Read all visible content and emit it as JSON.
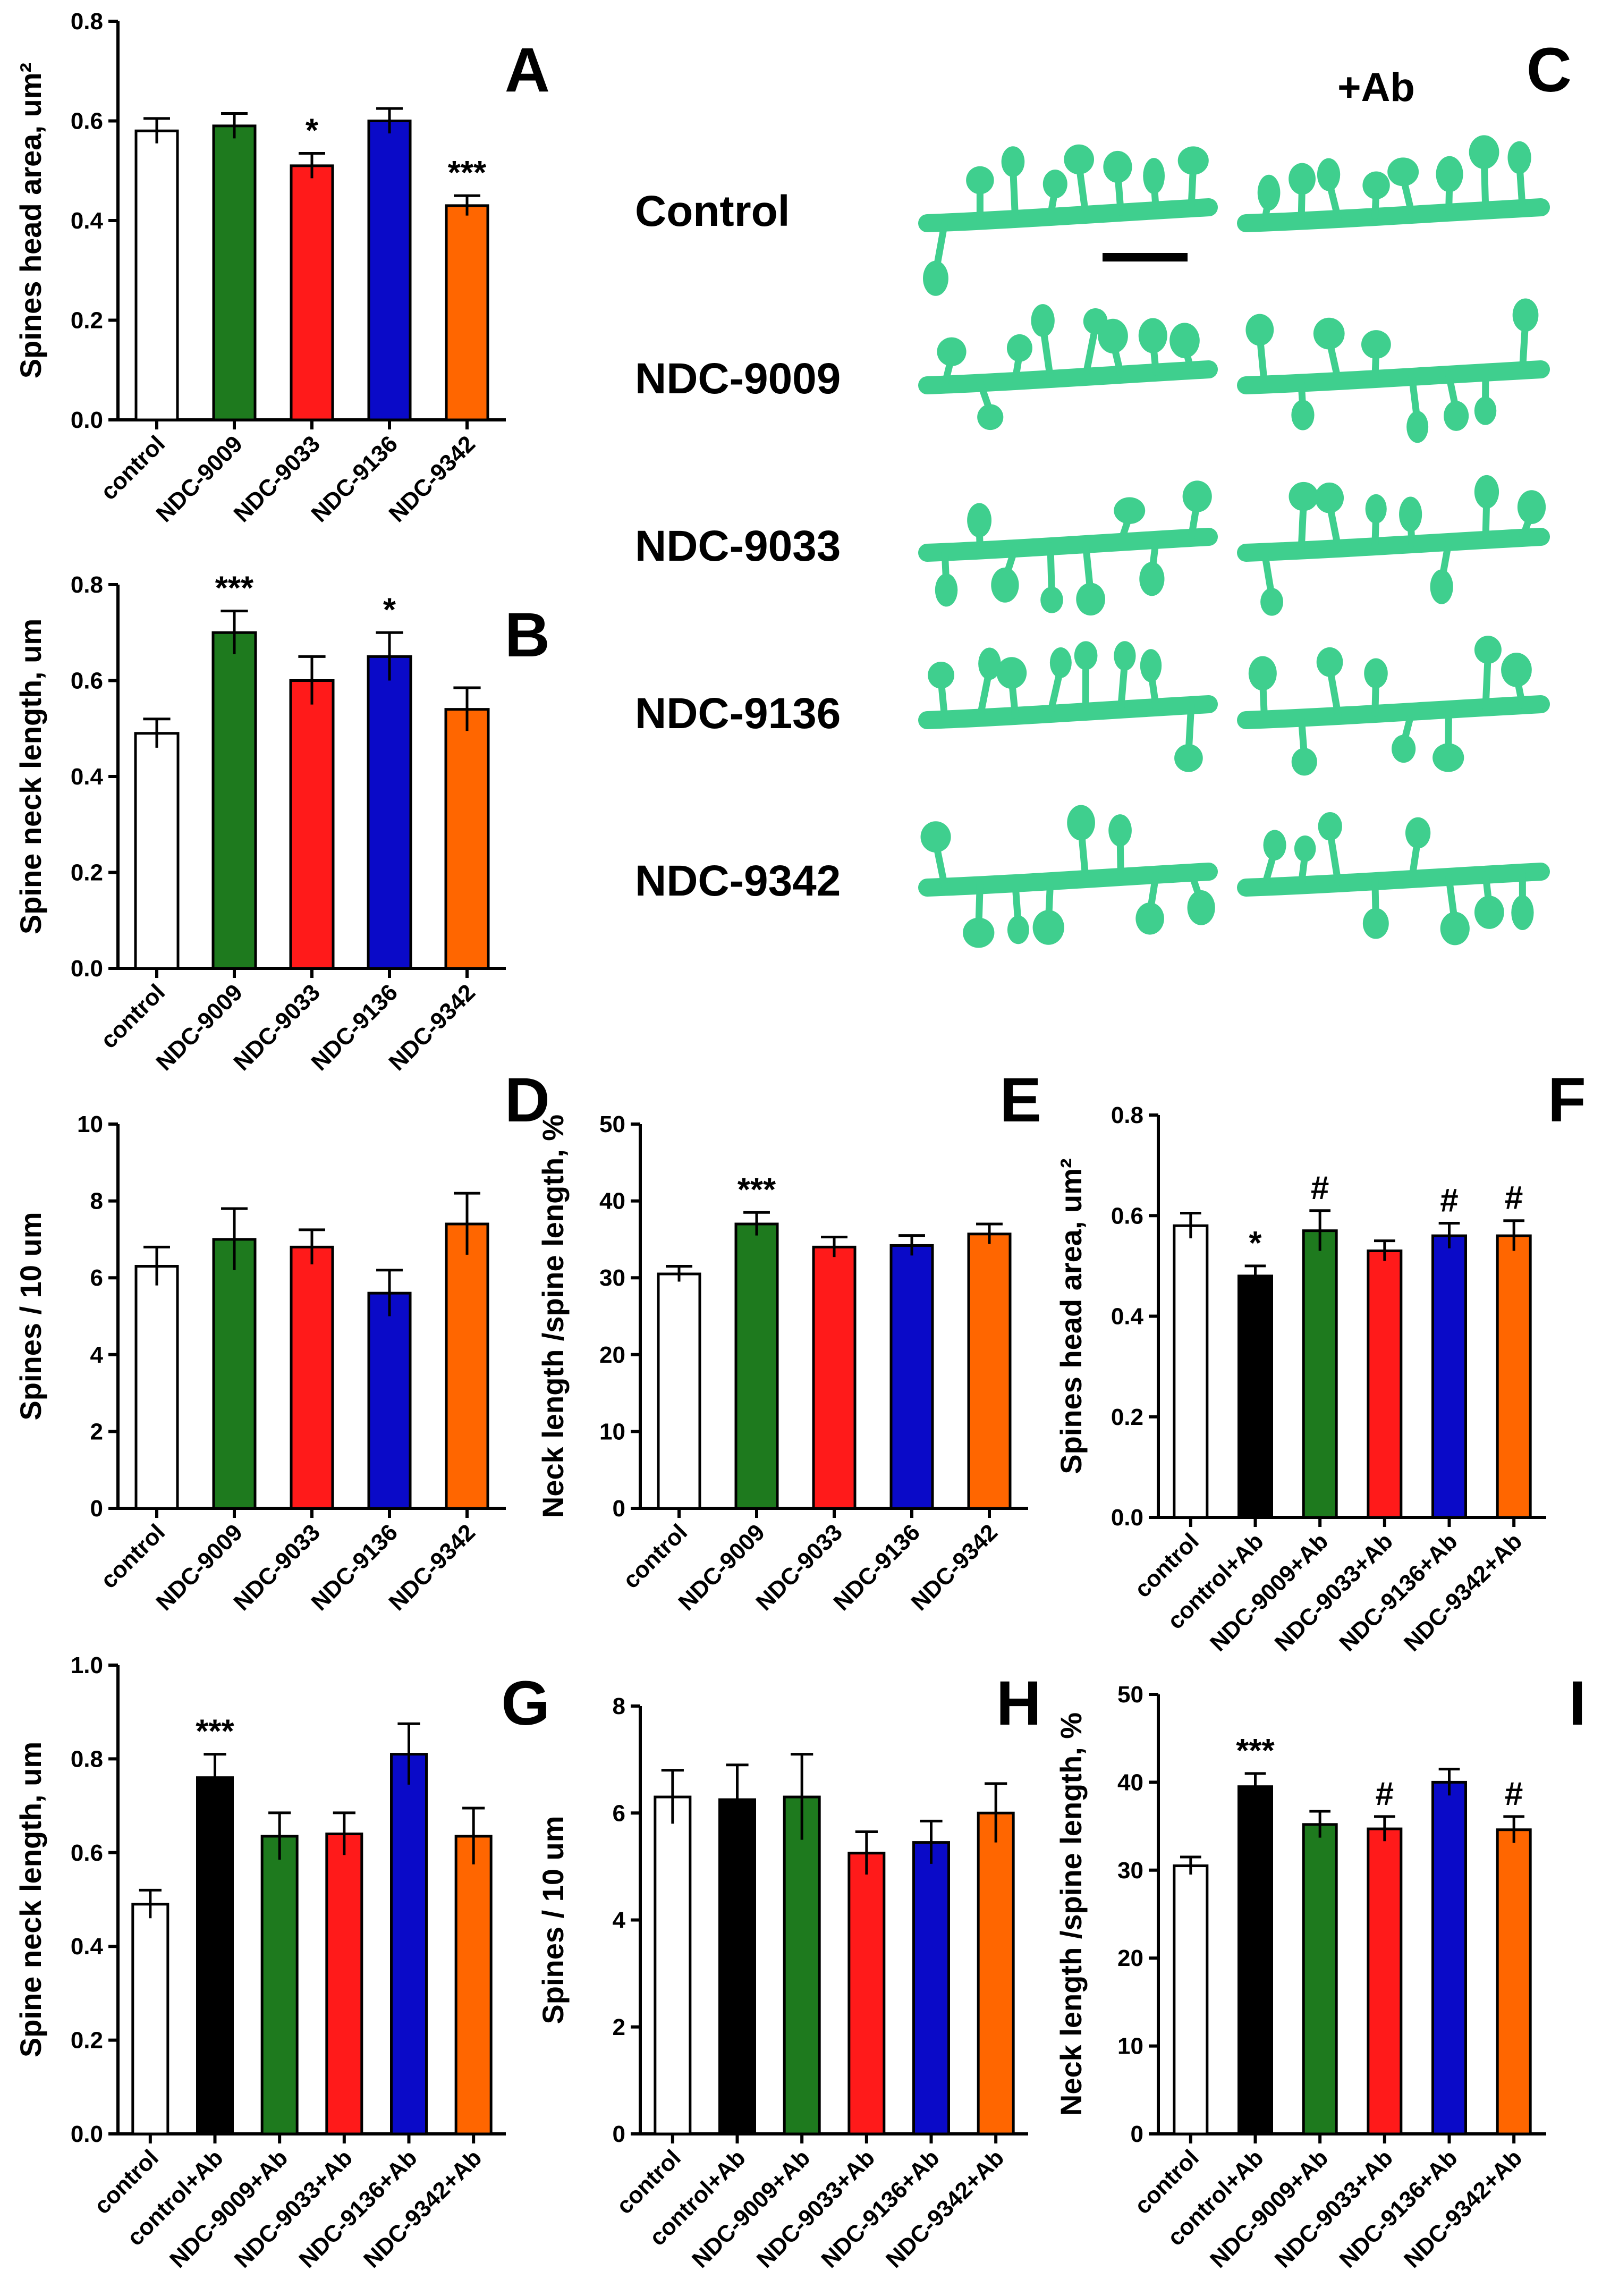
{
  "colors": {
    "control": "#ffffff",
    "control_ab": "#000000",
    "ndc9009": "#1e7a1e",
    "ndc9033": "#ff1a1a",
    "ndc9136": "#0a0ac8",
    "ndc9342": "#ff6600",
    "dendrite": "#3fcf8e",
    "scale_bar": "#000000"
  },
  "micrographs": {
    "panel_letter": "C",
    "column_label": "+Ab",
    "rows": [
      "Control",
      "NDC-9009",
      "NDC-9033",
      "NDC-9136",
      "NDC-9342"
    ]
  },
  "chart_data": [
    {
      "id": "A",
      "type": "bar",
      "panel_letter": "A",
      "ylabel": "Spines head area, um²",
      "ylim": [
        0,
        0.8
      ],
      "yticks": [
        "0.0",
        "0.2",
        "0.4",
        "0.6",
        "0.8"
      ],
      "categories": [
        "control",
        "NDC-9009",
        "NDC-9033",
        "NDC-9136",
        "NDC-9342"
      ],
      "values": [
        0.58,
        0.59,
        0.51,
        0.6,
        0.43
      ],
      "errors": [
        0.025,
        0.025,
        0.025,
        0.025,
        0.02
      ],
      "colors": [
        "#ffffff",
        "#1e7a1e",
        "#ff1a1a",
        "#0a0ac8",
        "#ff6600"
      ],
      "significance": [
        "",
        "",
        "*",
        "",
        "***"
      ]
    },
    {
      "id": "B",
      "type": "bar",
      "panel_letter": "B",
      "ylabel": "Spine neck length, um",
      "ylim": [
        0,
        0.8
      ],
      "yticks": [
        "0.0",
        "0.2",
        "0.4",
        "0.6",
        "0.8"
      ],
      "categories": [
        "control",
        "NDC-9009",
        "NDC-9033",
        "NDC-9136",
        "NDC-9342"
      ],
      "values": [
        0.49,
        0.7,
        0.6,
        0.65,
        0.54
      ],
      "errors": [
        0.03,
        0.045,
        0.05,
        0.05,
        0.045
      ],
      "colors": [
        "#ffffff",
        "#1e7a1e",
        "#ff1a1a",
        "#0a0ac8",
        "#ff6600"
      ],
      "significance": [
        "",
        "***",
        "",
        "*",
        ""
      ]
    },
    {
      "id": "D",
      "type": "bar",
      "panel_letter": "D",
      "ylabel": "Spines / 10 um",
      "ylim": [
        0,
        10
      ],
      "yticks": [
        "0",
        "2",
        "4",
        "6",
        "8",
        "10"
      ],
      "categories": [
        "control",
        "NDC-9009",
        "NDC-9033",
        "NDC-9136",
        "NDC-9342"
      ],
      "values": [
        6.3,
        7.0,
        6.8,
        5.6,
        7.4
      ],
      "errors": [
        0.5,
        0.8,
        0.45,
        0.6,
        0.8
      ],
      "colors": [
        "#ffffff",
        "#1e7a1e",
        "#ff1a1a",
        "#0a0ac8",
        "#ff6600"
      ],
      "significance": [
        "",
        "",
        "",
        "",
        ""
      ]
    },
    {
      "id": "E",
      "type": "bar",
      "panel_letter": "E",
      "ylabel": "Neck length /spine length, %",
      "ylim": [
        0,
        50
      ],
      "yticks": [
        "0",
        "10",
        "20",
        "30",
        "40",
        "50"
      ],
      "categories": [
        "control",
        "NDC-9009",
        "NDC-9033",
        "NDC-9136",
        "NDC-9342"
      ],
      "values": [
        30.5,
        37.0,
        34.0,
        34.2,
        35.7
      ],
      "errors": [
        1.0,
        1.5,
        1.3,
        1.3,
        1.3
      ],
      "colors": [
        "#ffffff",
        "#1e7a1e",
        "#ff1a1a",
        "#0a0ac8",
        "#ff6600"
      ],
      "significance": [
        "",
        "***",
        "",
        "",
        ""
      ]
    },
    {
      "id": "F",
      "type": "bar",
      "panel_letter": "F",
      "ylabel": "Spines head area, um²",
      "ylim": [
        0,
        0.8
      ],
      "yticks": [
        "0.0",
        "0.2",
        "0.4",
        "0.6",
        "0.8"
      ],
      "categories": [
        "control",
        "control+Ab",
        "NDC-9009+Ab",
        "NDC-9033+Ab",
        "NDC-9136+Ab",
        "NDC-9342+Ab"
      ],
      "values": [
        0.58,
        0.48,
        0.57,
        0.53,
        0.56,
        0.56
      ],
      "errors": [
        0.025,
        0.02,
        0.04,
        0.02,
        0.025,
        0.03
      ],
      "colors": [
        "#ffffff",
        "#000000",
        "#1e7a1e",
        "#ff1a1a",
        "#0a0ac8",
        "#ff6600"
      ],
      "significance": [
        "",
        "*",
        "#",
        "",
        "#",
        "#"
      ]
    },
    {
      "id": "G",
      "type": "bar",
      "panel_letter": "G",
      "ylabel": "Spine neck length, um",
      "ylim": [
        0,
        1.0
      ],
      "yticks": [
        "0.0",
        "0.2",
        "0.4",
        "0.6",
        "0.8",
        "1.0"
      ],
      "categories": [
        "control",
        "control+Ab",
        "NDC-9009+Ab",
        "NDC-9033+Ab",
        "NDC-9136+Ab",
        "NDC-9342+Ab"
      ],
      "values": [
        0.49,
        0.76,
        0.635,
        0.64,
        0.81,
        0.635
      ],
      "errors": [
        0.03,
        0.05,
        0.05,
        0.045,
        0.065,
        0.06
      ],
      "colors": [
        "#ffffff",
        "#000000",
        "#1e7a1e",
        "#ff1a1a",
        "#0a0ac8",
        "#ff6600"
      ],
      "significance": [
        "",
        "***",
        "",
        "",
        "",
        ""
      ]
    },
    {
      "id": "H",
      "type": "bar",
      "panel_letter": "H",
      "ylabel": "Spines / 10 um",
      "ylim": [
        0,
        8
      ],
      "yticks": [
        "0",
        "2",
        "4",
        "6",
        "8"
      ],
      "categories": [
        "control",
        "control+Ab",
        "NDC-9009+Ab",
        "NDC-9033+Ab",
        "NDC-9136+Ab",
        "NDC-9342+Ab"
      ],
      "values": [
        6.3,
        6.25,
        6.3,
        5.25,
        5.45,
        6.0
      ],
      "errors": [
        0.5,
        0.65,
        0.8,
        0.4,
        0.4,
        0.55
      ],
      "colors": [
        "#ffffff",
        "#000000",
        "#1e7a1e",
        "#ff1a1a",
        "#0a0ac8",
        "#ff6600"
      ],
      "significance": [
        "",
        "",
        "",
        "",
        "",
        ""
      ]
    },
    {
      "id": "I",
      "type": "bar",
      "panel_letter": "I",
      "ylabel": "Neck length /spine length, %",
      "ylim": [
        0,
        50
      ],
      "yticks": [
        "0",
        "10",
        "20",
        "30",
        "40",
        "50"
      ],
      "categories": [
        "control",
        "control+Ab",
        "NDC-9009+Ab",
        "NDC-9033+Ab",
        "NDC-9136+Ab",
        "NDC-9342+Ab"
      ],
      "values": [
        30.5,
        39.5,
        35.2,
        34.7,
        40.0,
        34.6
      ],
      "errors": [
        1.0,
        1.5,
        1.5,
        1.4,
        1.5,
        1.5
      ],
      "colors": [
        "#ffffff",
        "#000000",
        "#1e7a1e",
        "#ff1a1a",
        "#0a0ac8",
        "#ff6600"
      ],
      "significance": [
        "",
        "***",
        "",
        "#",
        "",
        "#"
      ]
    }
  ]
}
